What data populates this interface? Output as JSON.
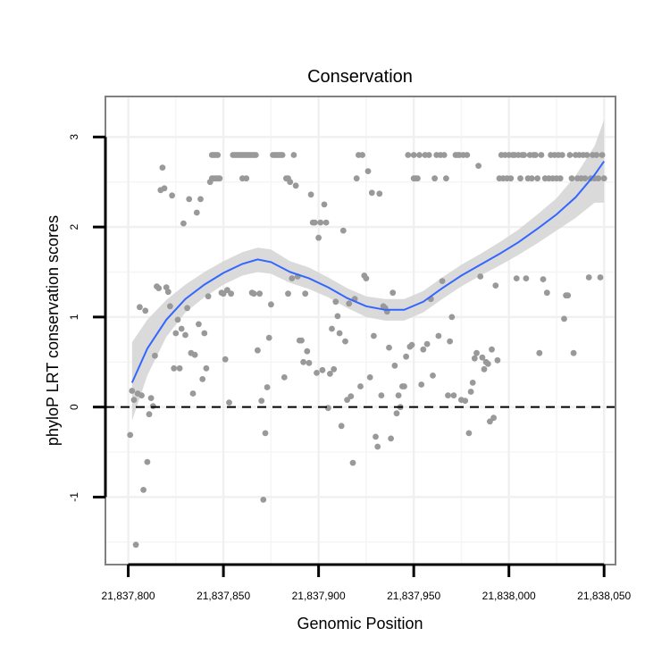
{
  "chart_data": {
    "type": "scatter",
    "title": "Conservation",
    "xlabel": "Genomic Position",
    "ylabel": "phyloP LRT conservation scores",
    "xlim": [
      21837788,
      21838056
    ],
    "ylim": [
      -1.75,
      3.45
    ],
    "x_ticks": [
      21837800,
      21837850,
      21837900,
      21837950,
      21838000,
      21838050
    ],
    "x_tick_labels": [
      "21,837,800",
      "21,837,850",
      "21,837,900",
      "21,837,950",
      "21,838,000",
      "21,838,050"
    ],
    "y_ticks": [
      -1,
      0,
      1,
      2,
      3
    ],
    "y_tick_labels": [
      "-1",
      "0",
      "1",
      "2",
      "3"
    ],
    "x_minor_grid": [
      21837825,
      21837875,
      21837925,
      21837975,
      21838025
    ],
    "y_minor_grid": [
      -1.5,
      -0.5,
      0.5,
      1.5,
      2.5
    ],
    "reference_line": {
      "y": 0,
      "style": "dashed"
    },
    "colors": {
      "points": "#999999",
      "smooth": "#3366ff",
      "ribbon": "#d3d3d3",
      "grid": "#f0f0f0",
      "panel_border": "#808080",
      "ref_line": "#000000"
    },
    "points": [
      [
        21837801,
        -0.31
      ],
      [
        21837802,
        0.18
      ],
      [
        21837803,
        0.08
      ],
      [
        21837804,
        -1.53
      ],
      [
        21837805,
        0.15
      ],
      [
        21837806,
        1.11
      ],
      [
        21837807,
        0.13
      ],
      [
        21837808,
        -0.92
      ],
      [
        21837809,
        1.07
      ],
      [
        21837810,
        -0.61
      ],
      [
        21837811,
        -0.08
      ],
      [
        21837812,
        0.1
      ],
      [
        21837813,
        0.01
      ],
      [
        21837814,
        0.57
      ],
      [
        21837815,
        1.34
      ],
      [
        21837816,
        1.32
      ],
      [
        21837817,
        2.41
      ],
      [
        21837818,
        2.66
      ],
      [
        21837819,
        2.43
      ],
      [
        21837820,
        1.33
      ],
      [
        21837821,
        1.28
      ],
      [
        21837822,
        1.12
      ],
      [
        21837823,
        2.35
      ],
      [
        21837824,
        0.43
      ],
      [
        21837825,
        0.82
      ],
      [
        21837826,
        0.97
      ],
      [
        21837827,
        0.43
      ],
      [
        21837828,
        0.87
      ],
      [
        21837829,
        2.04
      ],
      [
        21837830,
        0.8
      ],
      [
        21837831,
        1.1
      ],
      [
        21837832,
        2.31
      ],
      [
        21837833,
        0.6
      ],
      [
        21837834,
        0.15
      ],
      [
        21837835,
        0.58
      ],
      [
        21837836,
        2.16
      ],
      [
        21837837,
        0.92
      ],
      [
        21837838,
        2.31
      ],
      [
        21837839,
        0.31
      ],
      [
        21837840,
        0.82
      ],
      [
        21837841,
        0.43
      ],
      [
        21837842,
        1.23
      ],
      [
        21837843,
        2.5
      ],
      [
        21837844,
        2.8
      ],
      [
        21837844,
        2.54
      ],
      [
        21837845,
        2.8
      ],
      [
        21837845,
        2.54
      ],
      [
        21837846,
        2.8
      ],
      [
        21837846,
        2.54
      ],
      [
        21837847,
        2.8
      ],
      [
        21837847,
        2.54
      ],
      [
        21837848,
        2.54
      ],
      [
        21837849,
        1.27
      ],
      [
        21837850,
        1.26
      ],
      [
        21837851,
        0.53
      ],
      [
        21837852,
        1.3
      ],
      [
        21837853,
        0.05
      ],
      [
        21837854,
        1.26
      ],
      [
        21837855,
        2.8
      ],
      [
        21837856,
        2.8
      ],
      [
        21837857,
        2.8
      ],
      [
        21837858,
        2.8
      ],
      [
        21837859,
        2.8
      ],
      [
        21837860,
        2.8
      ],
      [
        21837860,
        2.54
      ],
      [
        21837861,
        2.8
      ],
      [
        21837862,
        2.8
      ],
      [
        21837862,
        2.54
      ],
      [
        21837863,
        2.8
      ],
      [
        21837864,
        2.8
      ],
      [
        21837865,
        2.8
      ],
      [
        21837865,
        1.27
      ],
      [
        21837866,
        2.8
      ],
      [
        21837866,
        1.26
      ],
      [
        21837867,
        2.8
      ],
      [
        21837868,
        0.63
      ],
      [
        21837869,
        1.26
      ],
      [
        21837870,
        0.07
      ],
      [
        21837871,
        -1.03
      ],
      [
        21837872,
        -0.29
      ],
      [
        21837873,
        0.22
      ],
      [
        21837874,
        0.77
      ],
      [
        21837875,
        1.14
      ],
      [
        21837876,
        2.8
      ],
      [
        21837877,
        2.8
      ],
      [
        21837878,
        2.8
      ],
      [
        21837879,
        2.8
      ],
      [
        21837880,
        2.8
      ],
      [
        21837881,
        2.8
      ],
      [
        21837882,
        0.33
      ],
      [
        21837883,
        2.54
      ],
      [
        21837884,
        1.26
      ],
      [
        21837884,
        2.54
      ],
      [
        21837885,
        2.5
      ],
      [
        21837886,
        1.43
      ],
      [
        21837887,
        2.8
      ],
      [
        21837888,
        2.46
      ],
      [
        21837889,
        1.45
      ],
      [
        21837890,
        0.74
      ],
      [
        21837891,
        0.74
      ],
      [
        21837892,
        0.5
      ],
      [
        21837893,
        1.26
      ],
      [
        21837894,
        0.62
      ],
      [
        21837895,
        0.49
      ],
      [
        21837896,
        2.36
      ],
      [
        21837897,
        2.05
      ],
      [
        21837898,
        2.05
      ],
      [
        21837899,
        0.38
      ],
      [
        21837900,
        1.88
      ],
      [
        21837901,
        2.05
      ],
      [
        21837902,
        0.41
      ],
      [
        21837903,
        2.25
      ],
      [
        21837904,
        2.05
      ],
      [
        21837905,
        -0.01
      ],
      [
        21837906,
        0.37
      ],
      [
        21837907,
        0.87
      ],
      [
        21837908,
        0.42
      ],
      [
        21837909,
        1.17
      ],
      [
        21837910,
        1.01
      ],
      [
        21837911,
        0.82
      ],
      [
        21837912,
        -0.21
      ],
      [
        21837913,
        1.96
      ],
      [
        21837914,
        0.73
      ],
      [
        21837915,
        0.08
      ],
      [
        21837916,
        1.15
      ],
      [
        21837917,
        0.12
      ],
      [
        21837918,
        -0.62
      ],
      [
        21837919,
        1.2
      ],
      [
        21837920,
        2.54
      ],
      [
        21837921,
        2.8
      ],
      [
        21837922,
        0.23
      ],
      [
        21837923,
        2.8
      ],
      [
        21837924,
        1.46
      ],
      [
        21837925,
        1.43
      ],
      [
        21837926,
        2.62
      ],
      [
        21837927,
        0.33
      ],
      [
        21837928,
        2.38
      ],
      [
        21837929,
        0.79
      ],
      [
        21837930,
        -0.33
      ],
      [
        21837931,
        -0.44
      ],
      [
        21837932,
        2.37
      ],
      [
        21837933,
        0.13
      ],
      [
        21837934,
        1.12
      ],
      [
        21837935,
        1.1
      ],
      [
        21837936,
        1.06
      ],
      [
        21837937,
        0.66
      ],
      [
        21837938,
        -0.35
      ],
      [
        21837939,
        1.27
      ],
      [
        21837940,
        0.46
      ],
      [
        21837941,
        -0.07
      ],
      [
        21837942,
        0.13
      ],
      [
        21837943,
        0.0
      ],
      [
        21837944,
        0.23
      ],
      [
        21837945,
        0.23
      ],
      [
        21837946,
        0.56
      ],
      [
        21837947,
        2.8
      ],
      [
        21837948,
        0.67
      ],
      [
        21837949,
        0.69
      ],
      [
        21837950,
        2.8
      ],
      [
        21837950,
        2.54
      ],
      [
        21837951,
        2.54
      ],
      [
        21837952,
        2.54
      ],
      [
        21837953,
        2.8
      ],
      [
        21837954,
        0.25
      ],
      [
        21837955,
        0.64
      ],
      [
        21837956,
        2.8
      ],
      [
        21837957,
        0.7
      ],
      [
        21837958,
        2.8
      ],
      [
        21837959,
        1.2
      ],
      [
        21837960,
        0.35
      ],
      [
        21837961,
        2.54
      ],
      [
        21837962,
        2.8
      ],
      [
        21837963,
        0.79
      ],
      [
        21837964,
        2.8
      ],
      [
        21837965,
        1.4
      ],
      [
        21837966,
        2.8
      ],
      [
        21837967,
        2.54
      ],
      [
        21837968,
        0.13
      ],
      [
        21837969,
        0.73
      ],
      [
        21837970,
        1.0
      ],
      [
        21837971,
        0.13
      ],
      [
        21837972,
        2.8
      ],
      [
        21837973,
        2.8
      ],
      [
        21837974,
        2.8
      ],
      [
        21837975,
        0.08
      ],
      [
        21837976,
        2.8
      ],
      [
        21837977,
        0.07
      ],
      [
        21837978,
        2.8
      ],
      [
        21837979,
        -0.29
      ],
      [
        21837980,
        0.17
      ],
      [
        21837981,
        0.27
      ],
      [
        21837982,
        0.54
      ],
      [
        21837983,
        0.6
      ],
      [
        21837984,
        2.68
      ],
      [
        21837985,
        1.45
      ],
      [
        21837986,
        0.55
      ],
      [
        21837987,
        0.42
      ],
      [
        21837988,
        0.5
      ],
      [
        21837989,
        0.48
      ],
      [
        21837990,
        -0.16
      ],
      [
        21837991,
        0.64
      ],
      [
        21837992,
        -0.12
      ],
      [
        21837993,
        1.35
      ],
      [
        21837994,
        0.52
      ],
      [
        21837995,
        2.54
      ],
      [
        21837996,
        2.8
      ],
      [
        21837997,
        2.54
      ],
      [
        21837998,
        2.8
      ],
      [
        21837999,
        2.54
      ],
      [
        21838000,
        2.8
      ],
      [
        21838001,
        2.54
      ],
      [
        21838002,
        2.8
      ],
      [
        21838003,
        2.8
      ],
      [
        21838004,
        1.43
      ],
      [
        21838005,
        2.8
      ],
      [
        21838006,
        2.54
      ],
      [
        21838007,
        2.8
      ],
      [
        21838008,
        2.8
      ],
      [
        21838009,
        1.43
      ],
      [
        21838010,
        2.54
      ],
      [
        21838011,
        2.8
      ],
      [
        21838012,
        2.54
      ],
      [
        21838013,
        2.8
      ],
      [
        21838014,
        2.8
      ],
      [
        21838015,
        2.54
      ],
      [
        21838016,
        0.6
      ],
      [
        21838017,
        2.8
      ],
      [
        21838018,
        1.42
      ],
      [
        21838019,
        2.54
      ],
      [
        21838020,
        1.27
      ],
      [
        21838021,
        2.54
      ],
      [
        21838022,
        2.8
      ],
      [
        21838023,
        2.54
      ],
      [
        21838024,
        2.8
      ],
      [
        21838025,
        2.54
      ],
      [
        21838026,
        2.8
      ],
      [
        21838027,
        2.54
      ],
      [
        21838028,
        2.8
      ],
      [
        21838029,
        0.98
      ],
      [
        21838030,
        1.24
      ],
      [
        21838031,
        1.24
      ],
      [
        21838032,
        2.8
      ],
      [
        21838033,
        2.54
      ],
      [
        21838034,
        0.6
      ],
      [
        21838035,
        2.8
      ],
      [
        21838036,
        2.54
      ],
      [
        21838037,
        2.8
      ],
      [
        21838038,
        2.54
      ],
      [
        21838039,
        2.8
      ],
      [
        21838040,
        2.54
      ],
      [
        21838041,
        2.8
      ],
      [
        21838042,
        1.44
      ],
      [
        21838043,
        2.54
      ],
      [
        21838044,
        2.8
      ],
      [
        21838045,
        2.54
      ],
      [
        21838046,
        2.8
      ],
      [
        21838047,
        2.54
      ],
      [
        21838048,
        1.44
      ],
      [
        21838049,
        2.8
      ],
      [
        21838050,
        2.54
      ]
    ],
    "smooth": {
      "x": [
        21837802,
        21837810,
        21837820,
        21837830,
        21837840,
        21837850,
        21837860,
        21837868,
        21837875,
        21837885,
        21837895,
        21837905,
        21837915,
        21837925,
        21837935,
        21837945,
        21837955,
        21837965,
        21837975,
        21837985,
        21837995,
        21838005,
        21838015,
        21838025,
        21838035,
        21838045,
        21838050
      ],
      "y": [
        0.27,
        0.65,
        0.97,
        1.2,
        1.36,
        1.49,
        1.59,
        1.64,
        1.61,
        1.5,
        1.43,
        1.33,
        1.21,
        1.12,
        1.08,
        1.08,
        1.17,
        1.32,
        1.46,
        1.58,
        1.7,
        1.83,
        1.98,
        2.14,
        2.33,
        2.58,
        2.73
      ],
      "lower": [
        -0.15,
        0.35,
        0.78,
        1.05,
        1.22,
        1.36,
        1.46,
        1.5,
        1.48,
        1.38,
        1.31,
        1.22,
        1.1,
        1.0,
        0.96,
        0.96,
        1.05,
        1.2,
        1.34,
        1.46,
        1.57,
        1.69,
        1.82,
        1.96,
        2.1,
        2.27,
        2.27
      ],
      "upper": [
        0.72,
        0.97,
        1.19,
        1.36,
        1.5,
        1.62,
        1.72,
        1.77,
        1.75,
        1.62,
        1.55,
        1.44,
        1.32,
        1.23,
        1.2,
        1.2,
        1.29,
        1.44,
        1.58,
        1.7,
        1.83,
        1.97,
        2.14,
        2.32,
        2.57,
        2.9,
        3.19
      ]
    }
  }
}
